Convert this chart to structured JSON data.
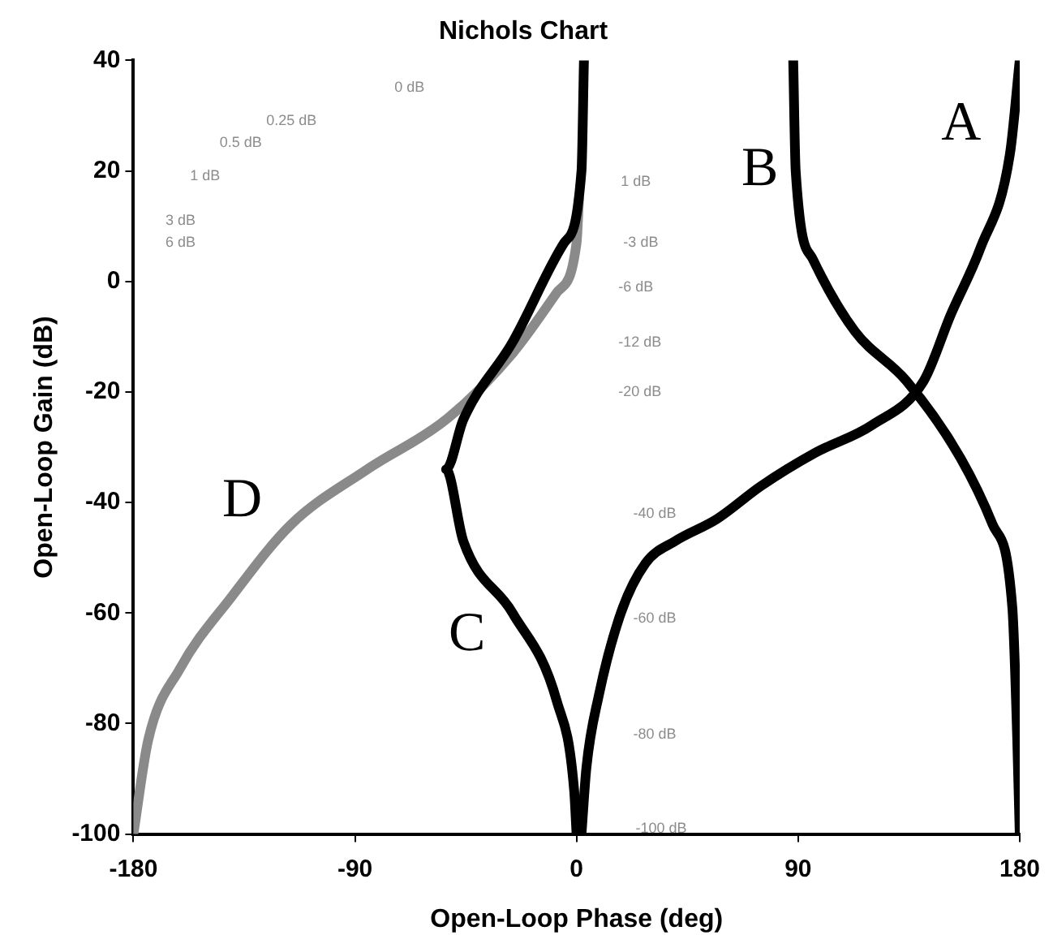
{
  "chart_data": {
    "type": "line",
    "title": "Nichols Chart",
    "xlabel": "Open-Loop Phase (deg)",
    "ylabel": "Open-Loop Gain (dB)",
    "xlim": [
      -180,
      180
    ],
    "xticks": [
      -180,
      -90,
      0,
      90,
      180
    ],
    "ylim": [
      -100,
      40
    ],
    "yticks": [
      -100,
      -80,
      -60,
      -40,
      -20,
      0,
      20,
      40
    ],
    "grid": false,
    "legend": false,
    "marker": "none",
    "line_style": "solid",
    "series": [
      {
        "name": "A",
        "color": "#000000",
        "x": [
          180,
          176,
          164,
          152,
          141,
          120,
          97,
          75,
          57,
          40,
          28,
          18,
          9,
          4,
          2
        ],
        "values": [
          40,
          23,
          6,
          -6,
          -18,
          -26,
          -31,
          -37,
          -43,
          -47,
          -51,
          -60,
          -75,
          -88,
          -100
        ]
      },
      {
        "name": "B",
        "color": "#000000",
        "x": [
          88,
          89,
          96,
          113,
          134,
          156,
          169,
          177,
          179,
          180
        ],
        "values": [
          40,
          20,
          4,
          -9,
          -18,
          -32,
          -44,
          -59,
          -83,
          -100
        ]
      },
      {
        "name": "C",
        "color": "#000000",
        "x": [
          3,
          2,
          -5,
          -26,
          -46,
          -53,
          -46,
          -26,
          -8,
          -1,
          0
        ],
        "values": [
          40,
          20,
          7,
          -11,
          -25,
          -34,
          -47,
          -60,
          -76,
          -92,
          -100
        ]
      },
      {
        "name": "D",
        "color": "#8a8a8a",
        "x": [
          -180,
          -174,
          -161,
          -140,
          -116,
          -85,
          -53,
          -26,
          -8,
          0,
          1
        ],
        "values": [
          -100,
          -83,
          -70,
          -57,
          -44,
          -34,
          -25,
          -13,
          -2,
          7,
          15
        ]
      }
    ],
    "annotations": [
      "0.25 dB",
      "0.5 dB",
      "1 dB",
      "3 dB",
      "6 dB",
      "0 dB",
      "1 dB",
      "-3 dB",
      "-6 dB",
      "-12 dB",
      "-20 dB",
      "-40 dB",
      "-60 dB",
      "-80 dB",
      "-100 dB"
    ]
  }
}
